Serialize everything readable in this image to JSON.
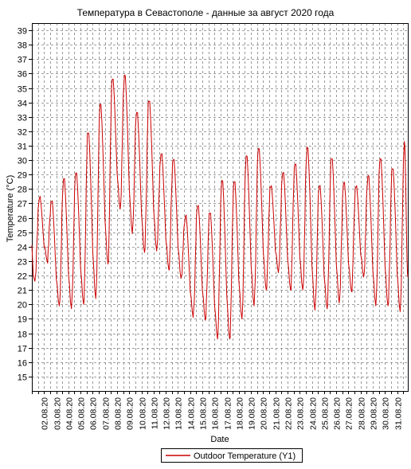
{
  "chart_data": {
    "type": "line",
    "title": "Температура в Севастополе - данные за август 2020 года",
    "xlabel": "Date",
    "ylabel": "Temperature (°C)",
    "ylim": [
      14,
      39.5
    ],
    "yticks": [
      15,
      16,
      17,
      18,
      19,
      20,
      21,
      22,
      23,
      24,
      25,
      26,
      27,
      28,
      29,
      30,
      31,
      32,
      33,
      34,
      35,
      36,
      37,
      38,
      39
    ],
    "x_tick_labels": [
      "02.08.20",
      "03.08.20",
      "04.08.20",
      "05.08.20",
      "06.08.20",
      "07.08.20",
      "08.08.20",
      "09.08.20",
      "10.08.20",
      "11.08.20",
      "12.08.20",
      "13.08.20",
      "14.08.20",
      "15.08.20",
      "16.08.20",
      "17.08.20",
      "18.08.20",
      "19.08.20",
      "20.08.20",
      "21.08.20",
      "22.08.20",
      "23.08.20",
      "24.08.20",
      "25.08.20",
      "26.08.20",
      "27.08.20",
      "28.08.20",
      "29.08.20",
      "30.08.20",
      "31.08.20"
    ],
    "xlim_days": [
      1,
      31.88
    ],
    "grid": true,
    "legend_position": "bottom",
    "series": [
      {
        "name": "Outdoor Temperature (Y1)",
        "color": "#cc0000",
        "daily": [
          {
            "day": "01.08.20",
            "min": 21.6,
            "max": 27.3
          },
          {
            "day": "02.08.20",
            "min": 23.0,
            "max": 27.1
          },
          {
            "day": "03.08.20",
            "min": 19.9,
            "max": 28.7
          },
          {
            "day": "04.08.20",
            "min": 19.7,
            "max": 29.1
          },
          {
            "day": "05.08.20",
            "min": 20.0,
            "max": 31.9
          },
          {
            "day": "06.08.20",
            "min": 20.4,
            "max": 33.9
          },
          {
            "day": "07.08.20",
            "min": 22.8,
            "max": 35.6
          },
          {
            "day": "08.08.20",
            "min": 26.6,
            "max": 35.9
          },
          {
            "day": "09.08.20",
            "min": 24.9,
            "max": 33.3
          },
          {
            "day": "10.08.20",
            "min": 23.6,
            "max": 34.1
          },
          {
            "day": "11.08.20",
            "min": 23.7,
            "max": 30.4
          },
          {
            "day": "12.08.20",
            "min": 22.4,
            "max": 30.0
          },
          {
            "day": "13.08.20",
            "min": 21.8,
            "max": 26.1
          },
          {
            "day": "14.08.20",
            "min": 19.1,
            "max": 26.8
          },
          {
            "day": "15.08.20",
            "min": 18.9,
            "max": 26.3
          },
          {
            "day": "16.08.20",
            "min": 17.6,
            "max": 28.6
          },
          {
            "day": "17.08.20",
            "min": 17.6,
            "max": 28.5
          },
          {
            "day": "18.08.20",
            "min": 19.0,
            "max": 30.3
          },
          {
            "day": "19.08.20",
            "min": 19.9,
            "max": 30.8
          },
          {
            "day": "20.08.20",
            "min": 21.0,
            "max": 28.1
          },
          {
            "day": "21.08.20",
            "min": 22.2,
            "max": 29.1
          },
          {
            "day": "22.08.20",
            "min": 21.0,
            "max": 29.7
          },
          {
            "day": "23.08.20",
            "min": 21.0,
            "max": 30.9
          },
          {
            "day": "24.08.20",
            "min": 19.6,
            "max": 28.2
          },
          {
            "day": "25.08.20",
            "min": 19.7,
            "max": 30.1
          },
          {
            "day": "26.08.20",
            "min": 20.1,
            "max": 28.4
          },
          {
            "day": "27.08.20",
            "min": 20.9,
            "max": 28.1
          },
          {
            "day": "28.08.20",
            "min": 21.9,
            "max": 28.9
          },
          {
            "day": "29.08.20",
            "min": 19.9,
            "max": 30.1
          },
          {
            "day": "30.08.20",
            "min": 19.9,
            "max": 29.4
          },
          {
            "day": "31.08.20",
            "min": 19.5,
            "max": 31.3
          }
        ],
        "end_value": 21.9
      }
    ]
  }
}
